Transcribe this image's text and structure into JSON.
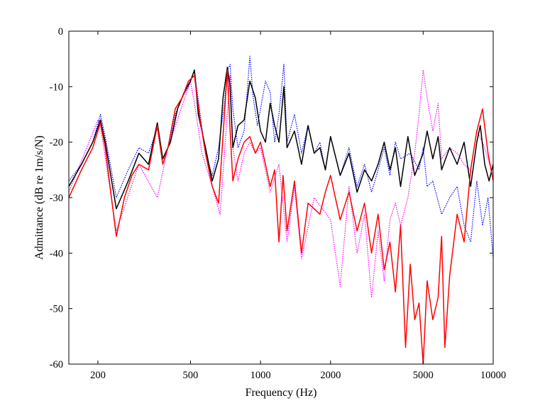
{
  "chart_data": {
    "type": "line",
    "title": "",
    "xlabel": "Frequency (Hz)",
    "ylabel": "Admittance (dB re 1m/s/N)",
    "xscale": "log",
    "xlim": [
      150,
      10000
    ],
    "ylim": [
      -60,
      0
    ],
    "grid": false,
    "legend": "none",
    "x_ticks": [
      {
        "value": 200,
        "label": "200"
      },
      {
        "value": 500,
        "label": "500"
      },
      {
        "value": 1000,
        "label": "1000"
      },
      {
        "value": 2000,
        "label": "2000"
      },
      {
        "value": 5000,
        "label": "5000"
      },
      {
        "value": 10000,
        "label": "10000"
      }
    ],
    "y_ticks": [
      {
        "value": 0,
        "label": "0"
      },
      {
        "value": -10,
        "label": "-10"
      },
      {
        "value": -20,
        "label": "-20"
      },
      {
        "value": -30,
        "label": "-30"
      },
      {
        "value": -40,
        "label": "-40"
      },
      {
        "value": -50,
        "label": "-50"
      },
      {
        "value": -60,
        "label": "-60"
      }
    ],
    "series": [
      {
        "color": "#0000ff",
        "style": "dotted",
        "x": [
          150,
          170,
          190,
          205,
          215,
          240,
          270,
          300,
          330,
          360,
          380,
          400,
          430,
          460,
          490,
          520,
          550,
          580,
          620,
          660,
          700,
          720,
          740,
          760,
          800,
          850,
          880,
          900,
          930,
          970,
          1000,
          1050,
          1100,
          1150,
          1200,
          1230,
          1260,
          1300,
          1400,
          1500,
          1600,
          1700,
          1800,
          1900,
          2000,
          2200,
          2400,
          2600,
          2800,
          3000,
          3200,
          3400,
          3600,
          3800,
          4000,
          4400,
          4800,
          5000,
          5200,
          5500,
          6000,
          6500,
          7000,
          7500,
          8000,
          8500,
          9000,
          9500,
          10000
        ],
        "y": [
          -27,
          -24,
          -20,
          -15,
          -19,
          -30,
          -25,
          -21,
          -22,
          -17.5,
          -24,
          -21,
          -15,
          -12,
          -10,
          -7,
          -15,
          -22,
          -26,
          -21,
          -13,
          -7,
          -6,
          -14,
          -21,
          -18,
          -10,
          -4.5,
          -12,
          -17,
          -14,
          -9,
          -11,
          -20,
          -15,
          -10.5,
          -6,
          -20,
          -15,
          -22,
          -17,
          -22,
          -20,
          -25,
          -19,
          -26,
          -21,
          -28,
          -24,
          -29,
          -25,
          -21,
          -26,
          -20,
          -23,
          -22,
          -25,
          -21,
          -28,
          -27,
          -33,
          -30,
          -28,
          -35,
          -38,
          -27,
          -35,
          -30,
          -41
        ]
      },
      {
        "color": "#ff00ff",
        "style": "dotted",
        "x": [
          150,
          200,
          205,
          240,
          300,
          360,
          400,
          500,
          520,
          560,
          620,
          670,
          700,
          740,
          760,
          800,
          850,
          900,
          950,
          1000,
          1100,
          1200,
          1300,
          1400,
          1500,
          1700,
          2000,
          2200,
          2400,
          2600,
          2800,
          3000,
          3200,
          3400,
          3600,
          3800,
          4000,
          4300,
          4600,
          4800,
          5000,
          5200,
          5500,
          5800,
          6000,
          6500,
          7000,
          7500,
          8000,
          8500,
          9000,
          9500,
          10000
        ],
        "y": [
          -29,
          -16,
          -17,
          -36,
          -24,
          -30,
          -21,
          -9,
          -13,
          -22,
          -28,
          -33,
          -22,
          -8,
          -21,
          -27,
          -22,
          -20,
          -22,
          -21,
          -29,
          -24,
          -38,
          -28,
          -41,
          -30,
          -34,
          -46,
          -28,
          -40,
          -33,
          -48,
          -36,
          -45,
          -34,
          -31,
          -35,
          -30,
          -22,
          -15,
          -7,
          -12,
          -18,
          -13,
          -23,
          -21,
          -22,
          -24,
          -25,
          -18,
          -20,
          -23,
          -26
        ]
      },
      {
        "color": "#000000",
        "style": "solid",
        "x": [
          150,
          170,
          190,
          205,
          215,
          240,
          270,
          300,
          330,
          360,
          380,
          410,
          440,
          470,
          500,
          520,
          540,
          580,
          620,
          660,
          690,
          720,
          740,
          760,
          800,
          850,
          900,
          950,
          1000,
          1050,
          1100,
          1150,
          1200,
          1230,
          1260,
          1300,
          1400,
          1500,
          1600,
          1700,
          1800,
          1900,
          2000,
          2200,
          2400,
          2600,
          2800,
          3000,
          3200,
          3400,
          3600,
          3800,
          4000,
          4300,
          4600,
          5000,
          5200,
          5500,
          5800,
          6000,
          6500,
          7000,
          7500,
          8000,
          8500,
          8800,
          9200,
          9600,
          10000
        ],
        "y": [
          -28,
          -24,
          -20,
          -16,
          -20,
          -32,
          -27,
          -22,
          -24,
          -16.5,
          -23,
          -20,
          -14,
          -11,
          -9,
          -7,
          -15,
          -21,
          -27,
          -23,
          -12,
          -6.5,
          -10,
          -21,
          -17,
          -16,
          -9,
          -12,
          -18,
          -20,
          -13,
          -17,
          -20,
          -15,
          -10,
          -21,
          -18,
          -24,
          -17,
          -22,
          -21,
          -25,
          -19,
          -26,
          -22,
          -29,
          -25,
          -27,
          -24,
          -20,
          -25,
          -21,
          -28,
          -19,
          -26,
          -22,
          -18,
          -23,
          -19,
          -25,
          -21,
          -24,
          -20,
          -28,
          -20,
          -17,
          -24,
          -27,
          -24
        ]
      },
      {
        "color": "#ff0000",
        "style": "solid",
        "x": [
          150,
          170,
          190,
          205,
          215,
          240,
          260,
          280,
          300,
          330,
          360,
          380,
          400,
          430,
          460,
          490,
          520,
          550,
          580,
          620,
          660,
          700,
          720,
          740,
          760,
          800,
          850,
          900,
          950,
          1000,
          1050,
          1100,
          1150,
          1200,
          1250,
          1300,
          1400,
          1500,
          1600,
          1700,
          1800,
          1900,
          2000,
          2200,
          2400,
          2600,
          2800,
          3000,
          3200,
          3400,
          3600,
          3800,
          4000,
          4200,
          4400,
          4600,
          4800,
          5000,
          5200,
          5500,
          5800,
          6000,
          6200,
          6500,
          7000,
          7500,
          8000,
          8500,
          9000,
          9500,
          10000
        ],
        "y": [
          -30,
          -25,
          -21,
          -16.5,
          -21,
          -37,
          -30,
          -26,
          -24,
          -25,
          -17,
          -24,
          -21,
          -14,
          -12,
          -9,
          -8,
          -16,
          -22,
          -28,
          -31,
          -15,
          -7,
          -18,
          -27,
          -23,
          -20,
          -19,
          -22,
          -20,
          -24,
          -28,
          -25,
          -38,
          -26,
          -36,
          -27,
          -40,
          -31,
          -32,
          -33,
          -29,
          -26,
          -34,
          -29,
          -36,
          -31,
          -40,
          -33,
          -43,
          -38,
          -47,
          -35,
          -57,
          -42,
          -52,
          -49,
          -60,
          -45,
          -52,
          -48,
          -37,
          -57,
          -44,
          -33,
          -38,
          -25,
          -18,
          -14,
          -22,
          -27
        ]
      }
    ]
  }
}
